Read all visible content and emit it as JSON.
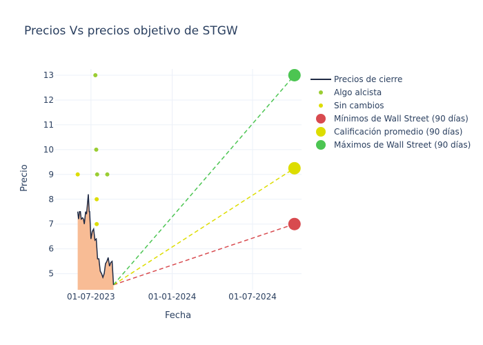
{
  "chart_data": {
    "type": "line",
    "title": "Precios Vs precios objetivo de STGW",
    "xlabel": "Fecha",
    "ylabel": "Precio",
    "xlim": [
      "2023-04-11",
      "2024-10-20"
    ],
    "ylim": [
      4.35,
      13.25
    ],
    "x_ticks": [
      "2023-07-01",
      "2024-01-01",
      "2024-07-01"
    ],
    "x_tick_labels": [
      "01-07-2023",
      "01-01-2024",
      "01-07-2024"
    ],
    "y_ticks": [
      5,
      6,
      7,
      8,
      9,
      10,
      11,
      12,
      13
    ],
    "grid": true,
    "legend_position": "top-right",
    "series": [
      {
        "name": "Precios de cierre",
        "kind": "line-area",
        "color": "#1f2a44",
        "fill": "#f8b88f",
        "points": [
          [
            "2023-06-01",
            7.5
          ],
          [
            "2023-06-03",
            7.2
          ],
          [
            "2023-06-05",
            7.5
          ],
          [
            "2023-06-07",
            7.5
          ],
          [
            "2023-06-09",
            7.2
          ],
          [
            "2023-06-12",
            7.25
          ],
          [
            "2023-06-14",
            7.2
          ],
          [
            "2023-06-16",
            7.0
          ],
          [
            "2023-06-19",
            7.5
          ],
          [
            "2023-06-21",
            7.4
          ],
          [
            "2023-06-23",
            7.8
          ],
          [
            "2023-06-25",
            8.2
          ],
          [
            "2023-06-27",
            7.5
          ],
          [
            "2023-06-28",
            7.5
          ],
          [
            "2023-07-01",
            6.4
          ],
          [
            "2023-07-04",
            6.7
          ],
          [
            "2023-07-07",
            6.8
          ],
          [
            "2023-07-10",
            6.35
          ],
          [
            "2023-07-13",
            6.4
          ],
          [
            "2023-07-16",
            5.6
          ],
          [
            "2023-07-19",
            5.6
          ],
          [
            "2023-07-22",
            5.1
          ],
          [
            "2023-07-25",
            5.0
          ],
          [
            "2023-07-28",
            4.85
          ],
          [
            "2023-07-31",
            5.0
          ],
          [
            "2023-08-03",
            5.4
          ],
          [
            "2023-08-06",
            5.5
          ],
          [
            "2023-08-09",
            5.65
          ],
          [
            "2023-08-12",
            5.3
          ],
          [
            "2023-08-15",
            5.45
          ],
          [
            "2023-08-18",
            5.5
          ],
          [
            "2023-08-21",
            4.55
          ]
        ]
      },
      {
        "name": "Algo alcista",
        "kind": "markers",
        "color": "#9acd32",
        "points": [
          [
            "2023-07-11",
            13.0
          ],
          [
            "2023-07-13",
            10.0
          ],
          [
            "2023-07-15",
            9.0
          ],
          [
            "2023-08-07",
            9.0
          ]
        ]
      },
      {
        "name": "Sin cambios",
        "kind": "markers",
        "color": "#dddd00",
        "points": [
          [
            "2023-06-01",
            9.0
          ],
          [
            "2023-07-14",
            8.0
          ],
          [
            "2023-07-14",
            7.0
          ]
        ]
      },
      {
        "name": "Mínimos de Wall Street (90 días)",
        "kind": "target",
        "color": "#d84a4f",
        "points": [
          [
            "2023-08-21",
            4.55
          ],
          [
            "2024-10-04",
            7.0
          ]
        ]
      },
      {
        "name": "Calificación promedio (90 días)",
        "kind": "target",
        "color": "#dddd00",
        "points": [
          [
            "2023-08-21",
            4.55
          ],
          [
            "2024-10-04",
            9.25
          ]
        ]
      },
      {
        "name": "Máximos de Wall Street (90 días)",
        "kind": "target",
        "color": "#4cc552",
        "points": [
          [
            "2023-08-21",
            4.55
          ],
          [
            "2024-10-04",
            13.0
          ]
        ]
      }
    ]
  }
}
